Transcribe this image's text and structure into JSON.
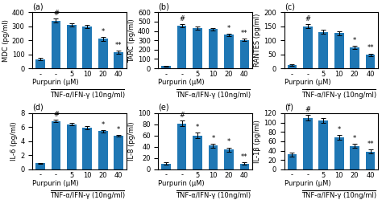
{
  "chart_data": [
    {
      "type": "bar",
      "title": "(a)",
      "y_label": "MDC (pg/ml)",
      "x_label": "Purpurin (μM)",
      "categories": [
        "-",
        "-",
        "5",
        "10",
        "20",
        "40"
      ],
      "values": [
        65,
        340,
        310,
        300,
        210,
        115
      ],
      "errors": [
        10,
        15,
        12,
        12,
        12,
        10
      ],
      "annotations": [
        null,
        "#",
        null,
        null,
        "*",
        "**"
      ],
      "group": {
        "label": "TNF-α/IFN-γ (10ng/ml)",
        "from_index": 1,
        "to_index": 5
      },
      "ylim": [
        0,
        400
      ],
      "yticks": [
        0,
        100,
        200,
        300,
        400
      ]
    },
    {
      "type": "bar",
      "title": "(b)",
      "y_label": "TARC (pg/ml)",
      "x_label": "Purpurin (μM)",
      "categories": [
        "-",
        "-",
        "5",
        "10",
        "20",
        "40"
      ],
      "values": [
        25,
        455,
        430,
        420,
        360,
        305
      ],
      "errors": [
        5,
        20,
        15,
        12,
        12,
        12
      ],
      "annotations": [
        null,
        "#",
        null,
        null,
        "*",
        "**"
      ],
      "group": {
        "label": "TNF-α/IFN-γ (10ng/ml)",
        "from_index": 1,
        "to_index": 5
      },
      "ylim": [
        0,
        600
      ],
      "yticks": [
        0,
        100,
        200,
        300,
        400,
        500,
        600
      ]
    },
    {
      "type": "bar",
      "title": "(c)",
      "y_label": "RANTES (pg/ml)",
      "x_label": "Purpurin (μM)",
      "categories": [
        "-",
        "-",
        "5",
        "10",
        "20",
        "40"
      ],
      "values": [
        12,
        150,
        130,
        125,
        75,
        48
      ],
      "errors": [
        3,
        8,
        8,
        8,
        6,
        5
      ],
      "annotations": [
        null,
        "#",
        null,
        null,
        "*",
        "**"
      ],
      "group": {
        "label": "TNF-α/IFN-γ (10ng/ml)",
        "from_index": 1,
        "to_index": 5
      },
      "ylim": [
        0,
        200
      ],
      "yticks": [
        0,
        50,
        100,
        150,
        200
      ]
    },
    {
      "type": "bar",
      "title": "(d)",
      "y_label": "IL-6 (pg/ml)",
      "x_label": "Purpurin (μM)",
      "categories": [
        "-",
        "-",
        "5",
        "10",
        "20",
        "40"
      ],
      "values": [
        0.85,
        6.9,
        6.45,
        5.95,
        5.45,
        4.8
      ],
      "errors": [
        0.1,
        0.2,
        0.2,
        0.2,
        0.15,
        0.15
      ],
      "annotations": [
        null,
        "#",
        null,
        null,
        "*",
        "*"
      ],
      "group": {
        "label": "TNF-α/IFN-γ (10ng/ml)",
        "from_index": 1,
        "to_index": 5
      },
      "ylim": [
        0,
        8
      ],
      "yticks": [
        0,
        2,
        4,
        6,
        8
      ]
    },
    {
      "type": "bar",
      "title": "(e)",
      "y_label": "IL-8 (pg/ml)",
      "x_label": "Purpurin (μM)",
      "categories": [
        "-",
        "-",
        "5",
        "10",
        "20",
        "40"
      ],
      "values": [
        10,
        82,
        60,
        42,
        35,
        10
      ],
      "errors": [
        2,
        5,
        5,
        4,
        4,
        2
      ],
      "annotations": [
        null,
        "#",
        "*",
        "*",
        "*",
        "**"
      ],
      "group": {
        "label": "TNF-α/IFN-γ (10ng/ml)",
        "from_index": 1,
        "to_index": 5
      },
      "ylim": [
        0,
        100
      ],
      "yticks": [
        0,
        20,
        40,
        60,
        80,
        100
      ]
    },
    {
      "type": "bar",
      "title": "(f)",
      "y_label": "IL-1β (pg/ml)",
      "x_label": "Purpurin (μM)",
      "categories": [
        "-",
        "-",
        "5",
        "10",
        "20",
        "40"
      ],
      "values": [
        32,
        110,
        105,
        68,
        50,
        38
      ],
      "errors": [
        4,
        6,
        5,
        5,
        4,
        4
      ],
      "annotations": [
        null,
        "#",
        null,
        "*",
        "*",
        "**"
      ],
      "group": {
        "label": "TNF-α/IFN-γ (10ng/ml)",
        "from_index": 1,
        "to_index": 5
      },
      "ylim": [
        0,
        120
      ],
      "yticks": [
        0,
        20,
        40,
        60,
        80,
        100,
        120
      ]
    }
  ]
}
